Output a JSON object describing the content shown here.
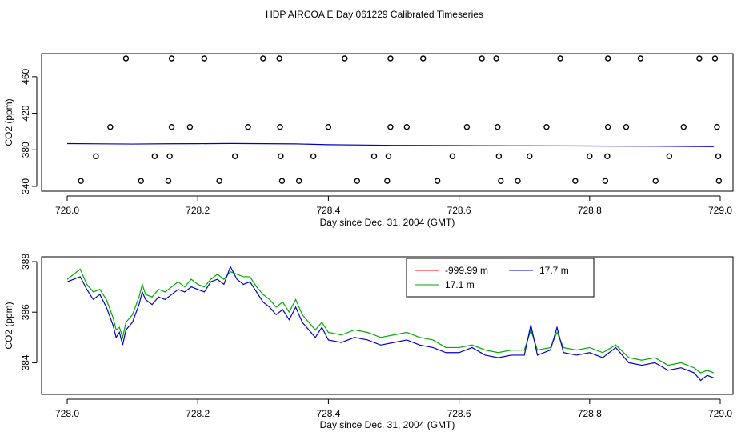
{
  "page_title": "HDP AIRCOA E  Day 061229  Calibrated Timeseries",
  "chart_data": [
    {
      "type": "scatter",
      "xlabel": "Day since Dec. 31, 2004 (GMT)",
      "ylabel": "CO2 (ppm)",
      "xlim": [
        728.0,
        729.0
      ],
      "ylim": [
        340,
        480
      ],
      "xticks": [
        728.0,
        728.2,
        728.4,
        728.6,
        728.8,
        729.0
      ],
      "xtick_labels": [
        "728.0",
        "728.2",
        "728.4",
        "728.6",
        "728.8",
        "729.0"
      ],
      "yticks": [
        340,
        380,
        420,
        460
      ],
      "ytick_labels": [
        "340",
        "380",
        "420",
        "460"
      ],
      "points_480": [
        728.09,
        728.16,
        728.21,
        728.3,
        728.325,
        728.425,
        728.495,
        728.545,
        728.635,
        728.657,
        728.755,
        728.828,
        728.878,
        728.968,
        728.992
      ],
      "points_405": [
        728.066,
        728.16,
        728.188,
        728.277,
        728.326,
        728.4,
        728.495,
        728.52,
        728.612,
        728.659,
        728.734,
        728.828,
        728.856,
        728.944,
        728.995
      ],
      "points_373": [
        728.044,
        728.134,
        728.157,
        728.257,
        728.327,
        728.377,
        728.47,
        728.492,
        728.59,
        728.661,
        728.708,
        728.8,
        728.827,
        728.922,
        728.997
      ],
      "points_346": [
        728.021,
        728.113,
        728.155,
        728.233,
        728.329,
        728.355,
        728.444,
        728.49,
        728.567,
        728.664,
        728.69,
        728.778,
        728.824,
        728.901,
        728.998
      ],
      "line": {
        "color": "#0000cc",
        "x": [
          728.0,
          728.1,
          728.15,
          728.2,
          728.25,
          728.3,
          728.35,
          728.4,
          728.5,
          728.6,
          728.7,
          728.8,
          728.9,
          728.99
        ],
        "y": [
          386.8,
          386.3,
          386.6,
          386.7,
          386.9,
          386.7,
          386.5,
          385.6,
          384.9,
          384.6,
          384.4,
          384.2,
          383.9,
          383.5
        ]
      }
    },
    {
      "type": "line",
      "xlabel": "Day since Dec. 31, 2004 (GMT)",
      "ylabel": "CO2 (ppm)",
      "xlim": [
        728.0,
        729.0
      ],
      "ylim": [
        383.0,
        388.0
      ],
      "xticks": [
        728.0,
        728.2,
        728.4,
        728.6,
        728.8,
        729.0
      ],
      "xtick_labels": [
        "728.0",
        "728.2",
        "728.4",
        "728.6",
        "728.8",
        "729.0"
      ],
      "yticks": [
        384,
        386,
        388
      ],
      "ytick_labels": [
        "384",
        "386",
        "388"
      ],
      "legend_position": "top-center",
      "series": [
        {
          "name": "-999.99 m",
          "color": "#ff0000",
          "x": [],
          "y": []
        },
        {
          "name": "17.7 m",
          "color": "#0000cc",
          "x": [
            728.0,
            728.01,
            728.02,
            728.03,
            728.04,
            728.05,
            728.06,
            728.07,
            728.075,
            728.08,
            728.085,
            728.09,
            728.1,
            728.11,
            728.115,
            728.12,
            728.13,
            728.14,
            728.15,
            728.16,
            728.17,
            728.18,
            728.19,
            728.2,
            728.21,
            728.22,
            728.23,
            728.24,
            728.25,
            728.26,
            728.27,
            728.28,
            728.29,
            728.3,
            728.31,
            728.32,
            728.33,
            728.34,
            728.35,
            728.36,
            728.37,
            728.38,
            728.39,
            728.4,
            728.42,
            728.44,
            728.46,
            728.48,
            728.5,
            728.52,
            728.54,
            728.56,
            728.58,
            728.6,
            728.62,
            728.64,
            728.66,
            728.68,
            728.7,
            728.71,
            728.72,
            728.74,
            728.75,
            728.76,
            728.78,
            728.8,
            728.82,
            728.84,
            728.86,
            728.88,
            728.9,
            728.92,
            728.94,
            728.96,
            728.97,
            728.98,
            728.99
          ],
          "y": [
            387.2,
            387.3,
            387.4,
            386.9,
            386.5,
            386.7,
            386.2,
            385.5,
            385.0,
            385.2,
            384.7,
            385.3,
            385.6,
            386.3,
            386.8,
            386.5,
            386.3,
            386.6,
            386.5,
            386.7,
            386.9,
            386.8,
            387.0,
            386.9,
            386.8,
            387.2,
            387.3,
            387.1,
            387.8,
            387.3,
            387.1,
            387.2,
            386.8,
            386.4,
            386.2,
            385.9,
            386.1,
            385.7,
            386.2,
            385.6,
            385.3,
            385.0,
            385.4,
            384.9,
            384.8,
            385.0,
            384.9,
            384.7,
            384.8,
            384.9,
            384.7,
            384.6,
            384.4,
            384.4,
            384.6,
            384.3,
            384.2,
            384.3,
            384.3,
            385.5,
            384.3,
            384.5,
            385.4,
            384.4,
            384.3,
            384.4,
            384.2,
            384.6,
            384.0,
            383.9,
            384.0,
            383.7,
            383.8,
            383.6,
            383.3,
            383.5,
            383.4
          ]
        },
        {
          "name": "17.1 m",
          "color": "#00aa00",
          "x": [
            728.0,
            728.01,
            728.02,
            728.03,
            728.04,
            728.05,
            728.06,
            728.07,
            728.075,
            728.08,
            728.085,
            728.09,
            728.1,
            728.11,
            728.115,
            728.12,
            728.13,
            728.14,
            728.15,
            728.16,
            728.17,
            728.18,
            728.19,
            728.2,
            728.21,
            728.22,
            728.23,
            728.24,
            728.25,
            728.26,
            728.27,
            728.28,
            728.29,
            728.3,
            728.31,
            728.32,
            728.33,
            728.34,
            728.35,
            728.36,
            728.37,
            728.38,
            728.39,
            728.4,
            728.42,
            728.44,
            728.46,
            728.48,
            728.5,
            728.52,
            728.54,
            728.56,
            728.58,
            728.6,
            728.62,
            728.64,
            728.66,
            728.68,
            728.7,
            728.71,
            728.72,
            728.74,
            728.75,
            728.76,
            728.78,
            728.8,
            728.82,
            728.84,
            728.86,
            728.88,
            728.9,
            728.92,
            728.94,
            728.96,
            728.97,
            728.98,
            728.99
          ],
          "y": [
            387.3,
            387.5,
            387.7,
            387.1,
            386.8,
            386.9,
            386.5,
            385.8,
            385.3,
            385.4,
            385.0,
            385.6,
            385.9,
            386.6,
            387.1,
            386.7,
            386.6,
            386.9,
            386.8,
            387.0,
            387.2,
            387.0,
            387.3,
            387.1,
            387.0,
            387.3,
            387.5,
            387.3,
            387.6,
            387.5,
            387.4,
            387.4,
            387.0,
            386.7,
            386.5,
            386.2,
            386.4,
            386.0,
            386.5,
            385.9,
            385.6,
            385.3,
            385.6,
            385.2,
            385.1,
            385.3,
            385.2,
            385.0,
            385.1,
            385.2,
            385.0,
            384.9,
            384.6,
            384.6,
            384.7,
            384.5,
            384.4,
            384.5,
            384.5,
            385.3,
            384.5,
            384.6,
            385.2,
            384.6,
            384.5,
            384.6,
            384.4,
            384.7,
            384.2,
            384.1,
            384.2,
            383.9,
            384.0,
            383.8,
            383.6,
            383.7,
            383.6
          ]
        }
      ]
    }
  ]
}
